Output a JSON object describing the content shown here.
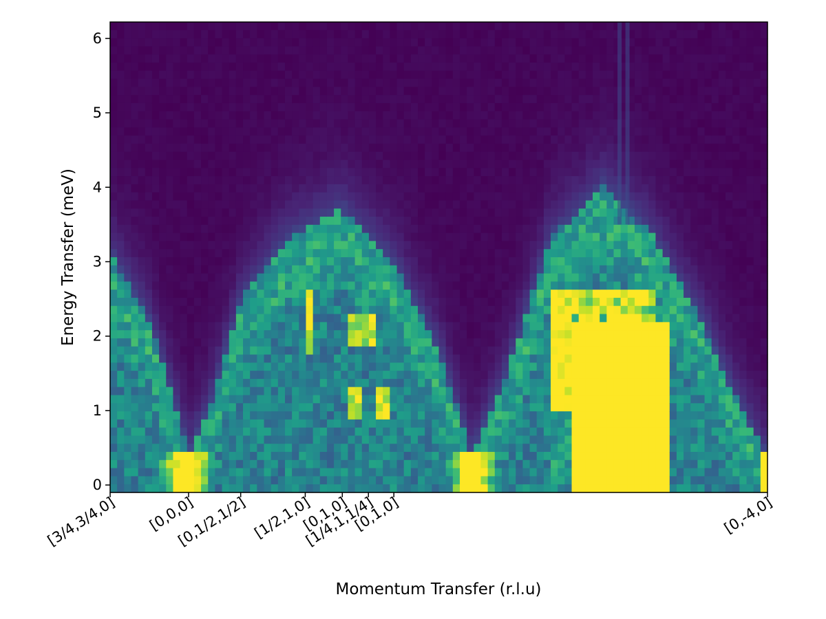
{
  "chart_data": {
    "type": "heatmap",
    "title": "",
    "xlabel": "Momentum Transfer (r.l.u)",
    "ylabel": "Energy Transfer (meV)",
    "ylim": [
      -0.1,
      6.22
    ],
    "y_ticks": [
      0,
      1,
      2,
      3,
      4,
      5,
      6
    ],
    "x_ticks": [
      {
        "label": "[3/4,3/4,0]",
        "pos": 0.0
      },
      {
        "label": "[0,0,0]",
        "pos": 0.1193
      },
      {
        "label": "[0,1/2,1/2]",
        "pos": 0.1986
      },
      {
        "label": "[1/2,1,0]",
        "pos": 0.2968
      },
      {
        "label": "[0,1,0]",
        "pos": 0.3532
      },
      {
        "label": "[1/4,1,1/4]",
        "pos": 0.3929
      },
      {
        "label": "[0,1,0]",
        "pos": 0.4316
      },
      {
        "label": "[0,-4,0]",
        "pos": 1.0
      }
    ],
    "colormap": "viridis",
    "grid": false,
    "color_scale": "intensity saturates to yellow"
  }
}
